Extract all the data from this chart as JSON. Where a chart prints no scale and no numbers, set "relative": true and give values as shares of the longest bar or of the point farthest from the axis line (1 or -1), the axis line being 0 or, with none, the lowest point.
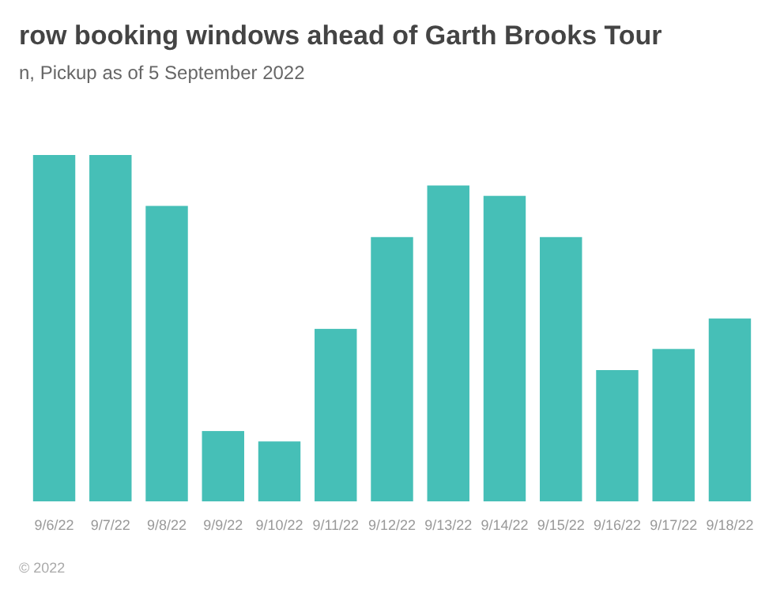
{
  "chart_data": {
    "type": "bar",
    "title": "row booking windows ahead of Garth Brooks Tour",
    "subtitle": "n, Pickup as of 5 September 2022",
    "categories": [
      "9/6/22",
      "9/7/22",
      "9/8/22",
      "9/9/22",
      "9/10/22",
      "9/11/22",
      "9/12/22",
      "9/13/22",
      "9/14/22",
      "9/15/22",
      "9/16/22",
      "9/17/22",
      "9/18/22"
    ],
    "values": [
      1,
      1,
      0.853,
      0.203,
      0.173,
      0.498,
      0.763,
      0.912,
      0.882,
      0.763,
      0.379,
      0.44,
      0.528
    ],
    "color": "#46bfb7",
    "relative": true,
    "annotations": [
      "© 2022"
    ]
  }
}
